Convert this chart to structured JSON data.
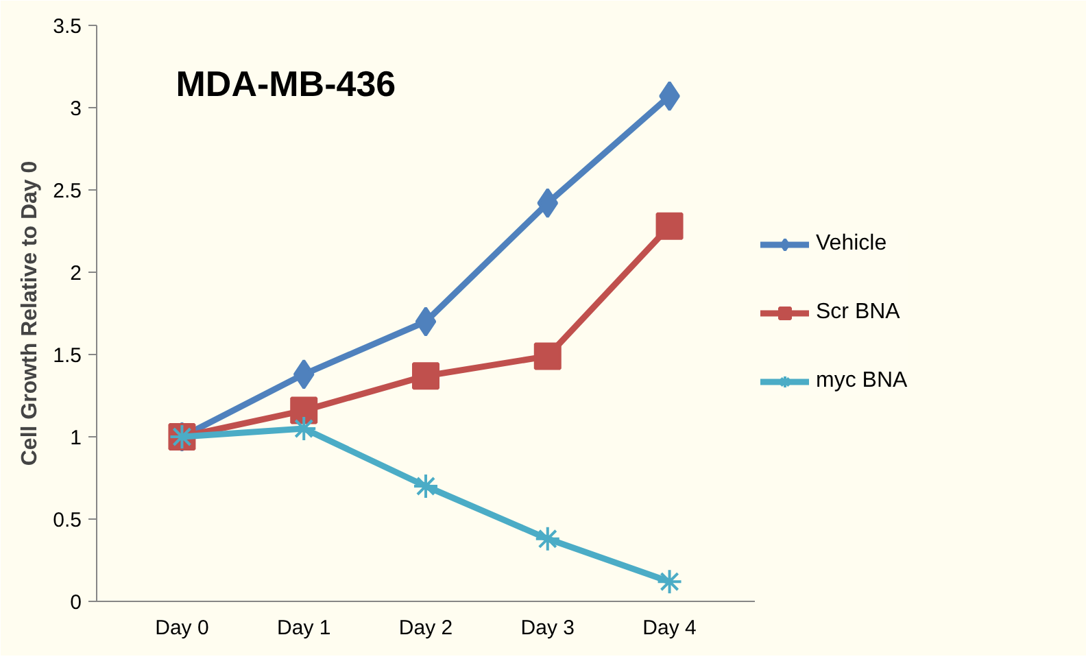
{
  "chart_data": {
    "type": "line",
    "title": "MDA-MB-436",
    "ylabel": "Cell Growth Relative to Day 0",
    "categories": [
      "Day 0",
      "Day 1",
      "Day 2",
      "Day 3",
      "Day 4"
    ],
    "series": [
      {
        "name": "Vehicle",
        "color": "#4f81bd",
        "marker": "diamond",
        "values": [
          1,
          1.38,
          1.7,
          2.42,
          3.07
        ]
      },
      {
        "name": "Scr BNA",
        "color": "#c0504d",
        "marker": "square",
        "values": [
          1,
          1.16,
          1.37,
          1.49,
          2.28
        ]
      },
      {
        "name": "myc BNA",
        "color": "#4bacc6",
        "marker": "cross",
        "values": [
          1,
          1.05,
          0.7,
          0.38,
          0.12
        ]
      }
    ],
    "ylim": [
      0,
      3.5
    ],
    "yticks": [
      0,
      0.5,
      1,
      1.5,
      2,
      2.5,
      3,
      3.5
    ],
    "grid": false,
    "legend": "right",
    "line_style": "solid"
  }
}
